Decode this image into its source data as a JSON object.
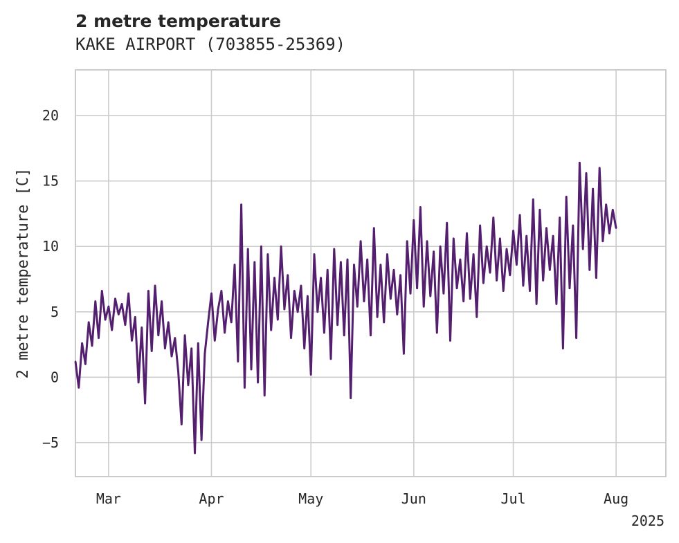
{
  "title": "2 metre temperature",
  "subtitle": "KAKE AIRPORT (703855-25369)",
  "chart_data": {
    "type": "line",
    "ylabel": "2 metre temperature [C]",
    "xlabel": "",
    "year_label": "2025",
    "xlim": [
      "2025-02-19",
      "2025-08-16"
    ],
    "ylim": [
      -7.6,
      23.5
    ],
    "grid": true,
    "x_ticks": [
      {
        "date": "2025-03-01",
        "label": "Mar"
      },
      {
        "date": "2025-04-01",
        "label": "Apr"
      },
      {
        "date": "2025-05-01",
        "label": "May"
      },
      {
        "date": "2025-06-01",
        "label": "Jun"
      },
      {
        "date": "2025-07-01",
        "label": "Jul"
      },
      {
        "date": "2025-08-01",
        "label": "Aug"
      }
    ],
    "y_ticks": [
      {
        "value": -5,
        "label": "−5"
      },
      {
        "value": 0,
        "label": "0"
      },
      {
        "value": 5,
        "label": "5"
      },
      {
        "value": 10,
        "label": "10"
      },
      {
        "value": 15,
        "label": "15"
      },
      {
        "value": 20,
        "label": "20"
      }
    ],
    "series": [
      {
        "color": "#541f6e",
        "points": [
          [
            "2025-02-19",
            1.2
          ],
          [
            "2025-02-20",
            -0.8
          ],
          [
            "2025-02-21",
            2.6
          ],
          [
            "2025-02-22",
            1.0
          ],
          [
            "2025-02-23",
            4.2
          ],
          [
            "2025-02-24",
            2.4
          ],
          [
            "2025-02-25",
            5.8
          ],
          [
            "2025-02-26",
            3.0
          ],
          [
            "2025-02-27",
            6.6
          ],
          [
            "2025-02-28",
            4.4
          ],
          [
            "2025-03-01",
            5.4
          ],
          [
            "2025-03-02",
            3.6
          ],
          [
            "2025-03-03",
            6.0
          ],
          [
            "2025-03-04",
            4.8
          ],
          [
            "2025-03-05",
            5.6
          ],
          [
            "2025-03-06",
            4.0
          ],
          [
            "2025-03-07",
            6.4
          ],
          [
            "2025-03-08",
            2.8
          ],
          [
            "2025-03-09",
            4.6
          ],
          [
            "2025-03-10",
            -0.4
          ],
          [
            "2025-03-11",
            3.8
          ],
          [
            "2025-03-12",
            -2.0
          ],
          [
            "2025-03-13",
            6.6
          ],
          [
            "2025-03-14",
            2.0
          ],
          [
            "2025-03-15",
            7.0
          ],
          [
            "2025-03-16",
            3.2
          ],
          [
            "2025-03-17",
            5.8
          ],
          [
            "2025-03-18",
            2.2
          ],
          [
            "2025-03-19",
            4.2
          ],
          [
            "2025-03-20",
            1.6
          ],
          [
            "2025-03-21",
            3.0
          ],
          [
            "2025-03-22",
            0.4
          ],
          [
            "2025-03-23",
            -3.6
          ],
          [
            "2025-03-24",
            3.2
          ],
          [
            "2025-03-25",
            -0.6
          ],
          [
            "2025-03-26",
            2.2
          ],
          [
            "2025-03-27",
            -5.8
          ],
          [
            "2025-03-28",
            2.6
          ],
          [
            "2025-03-29",
            -4.8
          ],
          [
            "2025-03-30",
            1.8
          ],
          [
            "2025-03-31",
            4.2
          ],
          [
            "2025-04-01",
            6.4
          ],
          [
            "2025-04-02",
            2.8
          ],
          [
            "2025-04-03",
            5.2
          ],
          [
            "2025-04-04",
            6.6
          ],
          [
            "2025-04-05",
            3.4
          ],
          [
            "2025-04-06",
            5.8
          ],
          [
            "2025-04-07",
            4.2
          ],
          [
            "2025-04-08",
            8.6
          ],
          [
            "2025-04-09",
            1.2
          ],
          [
            "2025-04-10",
            13.2
          ],
          [
            "2025-04-11",
            -0.8
          ],
          [
            "2025-04-12",
            9.8
          ],
          [
            "2025-04-13",
            0.6
          ],
          [
            "2025-04-14",
            8.8
          ],
          [
            "2025-04-15",
            -0.4
          ],
          [
            "2025-04-16",
            10.0
          ],
          [
            "2025-04-17",
            -1.4
          ],
          [
            "2025-04-18",
            9.4
          ],
          [
            "2025-04-19",
            3.6
          ],
          [
            "2025-04-20",
            7.6
          ],
          [
            "2025-04-21",
            4.4
          ],
          [
            "2025-04-22",
            10.0
          ],
          [
            "2025-04-23",
            5.2
          ],
          [
            "2025-04-24",
            7.8
          ],
          [
            "2025-04-25",
            3.0
          ],
          [
            "2025-04-26",
            6.6
          ],
          [
            "2025-04-27",
            5.0
          ],
          [
            "2025-04-28",
            7.0
          ],
          [
            "2025-04-29",
            2.2
          ],
          [
            "2025-04-30",
            6.2
          ],
          [
            "2025-05-01",
            0.2
          ],
          [
            "2025-05-02",
            9.4
          ],
          [
            "2025-05-03",
            5.0
          ],
          [
            "2025-05-04",
            7.6
          ],
          [
            "2025-05-05",
            3.4
          ],
          [
            "2025-05-06",
            8.2
          ],
          [
            "2025-05-07",
            1.4
          ],
          [
            "2025-05-08",
            9.8
          ],
          [
            "2025-05-09",
            4.0
          ],
          [
            "2025-05-10",
            8.8
          ],
          [
            "2025-05-11",
            3.2
          ],
          [
            "2025-05-12",
            9.0
          ],
          [
            "2025-05-13",
            -1.6
          ],
          [
            "2025-05-14",
            8.6
          ],
          [
            "2025-05-15",
            5.4
          ],
          [
            "2025-05-16",
            10.4
          ],
          [
            "2025-05-17",
            5.8
          ],
          [
            "2025-05-18",
            9.0
          ],
          [
            "2025-05-19",
            3.2
          ],
          [
            "2025-05-20",
            11.4
          ],
          [
            "2025-05-21",
            4.6
          ],
          [
            "2025-05-22",
            8.6
          ],
          [
            "2025-05-23",
            4.2
          ],
          [
            "2025-05-24",
            9.4
          ],
          [
            "2025-05-25",
            6.0
          ],
          [
            "2025-05-26",
            8.2
          ],
          [
            "2025-05-27",
            4.8
          ],
          [
            "2025-05-28",
            7.8
          ],
          [
            "2025-05-29",
            1.8
          ],
          [
            "2025-05-30",
            10.4
          ],
          [
            "2025-05-31",
            6.4
          ],
          [
            "2025-06-01",
            12.0
          ],
          [
            "2025-06-02",
            6.8
          ],
          [
            "2025-06-03",
            13.0
          ],
          [
            "2025-06-04",
            5.4
          ],
          [
            "2025-06-05",
            10.4
          ],
          [
            "2025-06-06",
            6.2
          ],
          [
            "2025-06-07",
            9.6
          ],
          [
            "2025-06-08",
            3.4
          ],
          [
            "2025-06-09",
            10.0
          ],
          [
            "2025-06-10",
            6.4
          ],
          [
            "2025-06-11",
            11.8
          ],
          [
            "2025-06-12",
            2.8
          ],
          [
            "2025-06-13",
            10.6
          ],
          [
            "2025-06-14",
            6.8
          ],
          [
            "2025-06-15",
            9.0
          ],
          [
            "2025-06-16",
            5.8
          ],
          [
            "2025-06-17",
            11.0
          ],
          [
            "2025-06-18",
            6.0
          ],
          [
            "2025-06-19",
            9.4
          ],
          [
            "2025-06-20",
            4.6
          ],
          [
            "2025-06-21",
            11.6
          ],
          [
            "2025-06-22",
            7.2
          ],
          [
            "2025-06-23",
            10.0
          ],
          [
            "2025-06-24",
            8.0
          ],
          [
            "2025-06-25",
            12.2
          ],
          [
            "2025-06-26",
            7.4
          ],
          [
            "2025-06-27",
            10.6
          ],
          [
            "2025-06-28",
            6.6
          ],
          [
            "2025-06-29",
            9.8
          ],
          [
            "2025-06-30",
            7.8
          ],
          [
            "2025-07-01",
            11.2
          ],
          [
            "2025-07-02",
            8.6
          ],
          [
            "2025-07-03",
            12.4
          ],
          [
            "2025-07-04",
            7.0
          ],
          [
            "2025-07-05",
            10.8
          ],
          [
            "2025-07-06",
            6.6
          ],
          [
            "2025-07-07",
            13.6
          ],
          [
            "2025-07-08",
            5.6
          ],
          [
            "2025-07-09",
            12.8
          ],
          [
            "2025-07-10",
            7.4
          ],
          [
            "2025-07-11",
            11.4
          ],
          [
            "2025-07-12",
            8.2
          ],
          [
            "2025-07-13",
            10.8
          ],
          [
            "2025-07-14",
            5.6
          ],
          [
            "2025-07-15",
            12.2
          ],
          [
            "2025-07-16",
            2.2
          ],
          [
            "2025-07-17",
            13.8
          ],
          [
            "2025-07-18",
            6.8
          ],
          [
            "2025-07-19",
            11.6
          ],
          [
            "2025-07-20",
            3.0
          ],
          [
            "2025-07-21",
            16.4
          ],
          [
            "2025-07-22",
            9.8
          ],
          [
            "2025-07-23",
            15.6
          ],
          [
            "2025-07-24",
            8.2
          ],
          [
            "2025-07-25",
            14.4
          ],
          [
            "2025-07-26",
            7.6
          ],
          [
            "2025-07-27",
            16.0
          ],
          [
            "2025-07-28",
            10.4
          ],
          [
            "2025-07-29",
            13.2
          ],
          [
            "2025-07-30",
            11.0
          ],
          [
            "2025-07-31",
            12.8
          ],
          [
            "2025-08-01",
            11.4
          ]
        ]
      }
    ]
  }
}
